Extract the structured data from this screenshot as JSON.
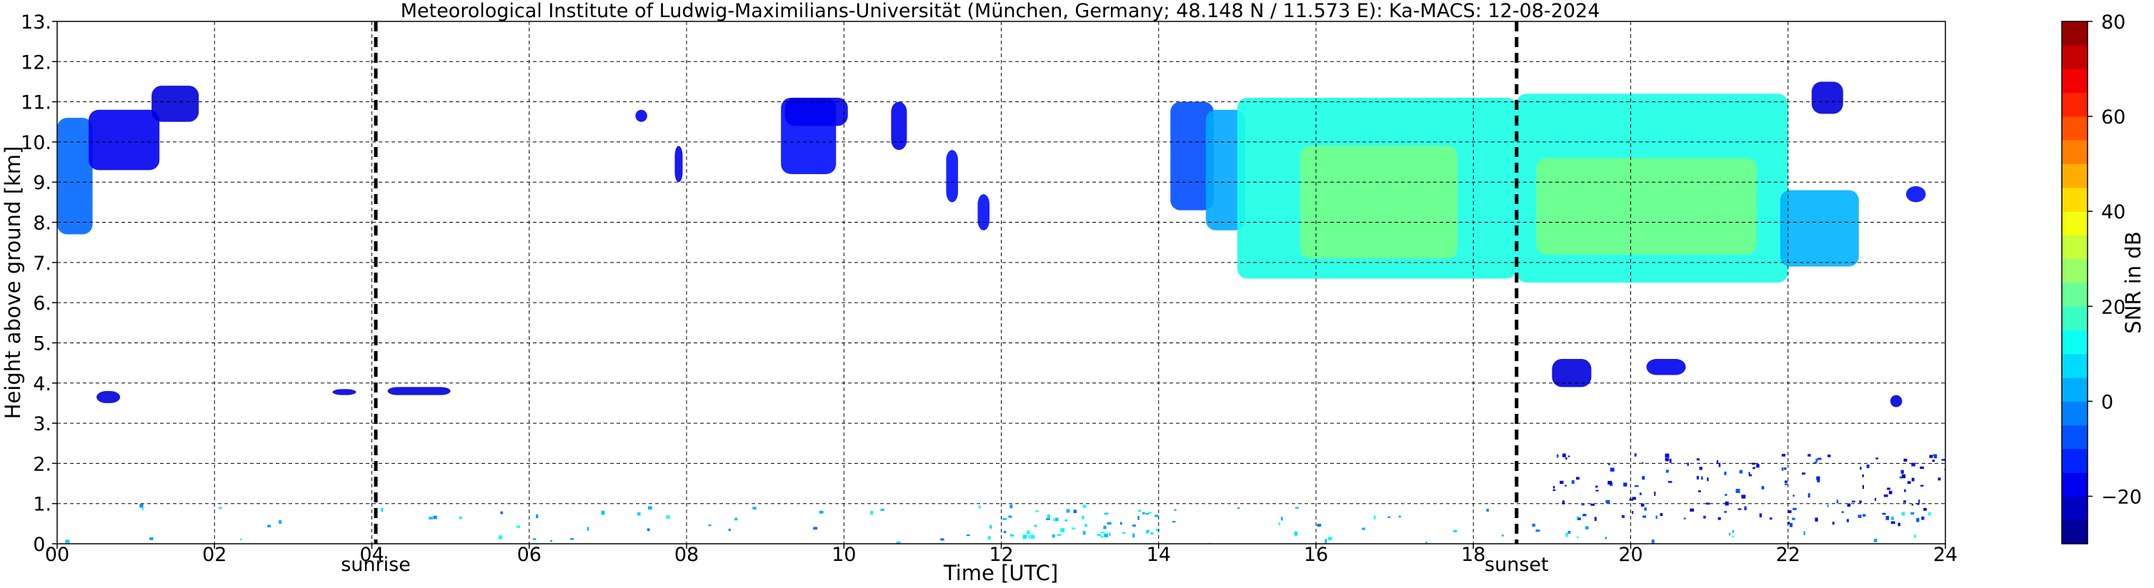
{
  "chart_data": {
    "type": "heatmap",
    "title": "Meteorological Institute of Ludwig-Maximilians-Universität (München, Germany; 48.148 N / 11.573 E):    Ka-MACS: 12-08-2024",
    "xlabel": "Time [UTC]",
    "ylabel": "Height above ground [km]",
    "xlim": [
      0,
      24
    ],
    "ylim": [
      0,
      13
    ],
    "grid": true,
    "x_ticks": [
      0,
      2,
      4,
      6,
      8,
      10,
      12,
      14,
      16,
      18,
      20,
      22,
      24
    ],
    "x_tick_labels": [
      "00",
      "02",
      "04",
      "06",
      "08",
      "10",
      "12",
      "14",
      "16",
      "18",
      "20",
      "22",
      "24"
    ],
    "y_ticks": [
      0,
      1,
      2,
      3,
      4,
      5,
      6,
      7,
      8,
      9,
      10,
      11,
      12,
      13
    ],
    "y_tick_labels": [
      "0.",
      "1.",
      "2.",
      "3.",
      "4.",
      "5.",
      "6.",
      "7.",
      "8.",
      "9.",
      "10.",
      "11.",
      "12.",
      "13."
    ],
    "vertical_markers": [
      {
        "label": "sunrise",
        "time": 4.05
      },
      {
        "label": "sunset",
        "time": 18.55
      }
    ],
    "colorbar": {
      "label": "SNR in dB",
      "vmin": -30,
      "vmax": 80,
      "ticks": [
        -20,
        0,
        20,
        40,
        60,
        80
      ],
      "tick_labels": [
        "−20",
        "0",
        "20",
        "40",
        "60",
        "80"
      ],
      "colormap": "jet"
    },
    "features": [
      {
        "t0": 0.0,
        "t1": 0.45,
        "bottom": 7.7,
        "top": 10.6,
        "snr": -5
      },
      {
        "t0": 0.4,
        "t1": 1.3,
        "bottom": 9.3,
        "top": 10.8,
        "snr": -18
      },
      {
        "t0": 1.2,
        "t1": 1.8,
        "bottom": 10.5,
        "top": 11.4,
        "snr": -20
      },
      {
        "t0": 0.5,
        "t1": 0.8,
        "bottom": 3.5,
        "top": 3.8,
        "snr": -20
      },
      {
        "t0": 3.5,
        "t1": 3.8,
        "bottom": 3.7,
        "top": 3.85,
        "snr": -20
      },
      {
        "t0": 4.2,
        "t1": 5.0,
        "bottom": 3.7,
        "top": 3.9,
        "snr": -20
      },
      {
        "t0": 7.35,
        "t1": 7.5,
        "bottom": 10.5,
        "top": 10.8,
        "snr": -18
      },
      {
        "t0": 7.85,
        "t1": 7.95,
        "bottom": 9.0,
        "top": 9.9,
        "snr": -18
      },
      {
        "t0": 9.2,
        "t1": 9.9,
        "bottom": 9.2,
        "top": 11.1,
        "snr": -15
      },
      {
        "t0": 9.25,
        "t1": 10.05,
        "bottom": 10.4,
        "top": 11.1,
        "snr": -18
      },
      {
        "t0": 10.6,
        "t1": 10.8,
        "bottom": 9.8,
        "top": 11.0,
        "snr": -18
      },
      {
        "t0": 11.3,
        "t1": 11.45,
        "bottom": 8.5,
        "top": 9.8,
        "snr": -15
      },
      {
        "t0": 11.7,
        "t1": 11.85,
        "bottom": 7.8,
        "top": 8.7,
        "snr": -15
      },
      {
        "t0": 14.15,
        "t1": 14.7,
        "bottom": 8.3,
        "top": 11.0,
        "snr": -8
      },
      {
        "t0": 14.6,
        "t1": 15.1,
        "bottom": 7.8,
        "top": 10.8,
        "snr": 2
      },
      {
        "t0": 15.0,
        "t1": 18.55,
        "bottom": 6.6,
        "top": 11.1,
        "snr": 14
      },
      {
        "t0": 15.8,
        "t1": 17.8,
        "bottom": 7.1,
        "top": 9.9,
        "snr": 24
      },
      {
        "t0": 18.55,
        "t1": 22.0,
        "bottom": 6.5,
        "top": 11.2,
        "snr": 14
      },
      {
        "t0": 18.8,
        "t1": 21.6,
        "bottom": 7.2,
        "top": 9.6,
        "snr": 24
      },
      {
        "t0": 21.9,
        "t1": 22.9,
        "bottom": 6.9,
        "top": 8.8,
        "snr": 3
      },
      {
        "t0": 22.3,
        "t1": 22.7,
        "bottom": 10.7,
        "top": 11.5,
        "snr": -20
      },
      {
        "t0": 23.5,
        "t1": 23.75,
        "bottom": 8.5,
        "top": 8.9,
        "snr": -15
      },
      {
        "t0": 19.0,
        "t1": 19.5,
        "bottom": 3.9,
        "top": 4.6,
        "snr": -20
      },
      {
        "t0": 20.2,
        "t1": 20.7,
        "bottom": 4.2,
        "top": 4.6,
        "snr": -18
      },
      {
        "t0": 23.3,
        "t1": 23.45,
        "bottom": 3.4,
        "top": 3.7,
        "snr": -20
      }
    ],
    "speckles": [
      {
        "t0": 0.0,
        "t1": 24.0,
        "bottom": 0.0,
        "top": 1.0,
        "snr": 5,
        "count": 90
      },
      {
        "t0": 19.0,
        "t1": 24.0,
        "bottom": 0.5,
        "top": 2.3,
        "snr": -15,
        "count": 140
      },
      {
        "t0": 12.0,
        "t1": 14.0,
        "bottom": 0.2,
        "top": 0.9,
        "snr": 8,
        "count": 40
      }
    ]
  }
}
